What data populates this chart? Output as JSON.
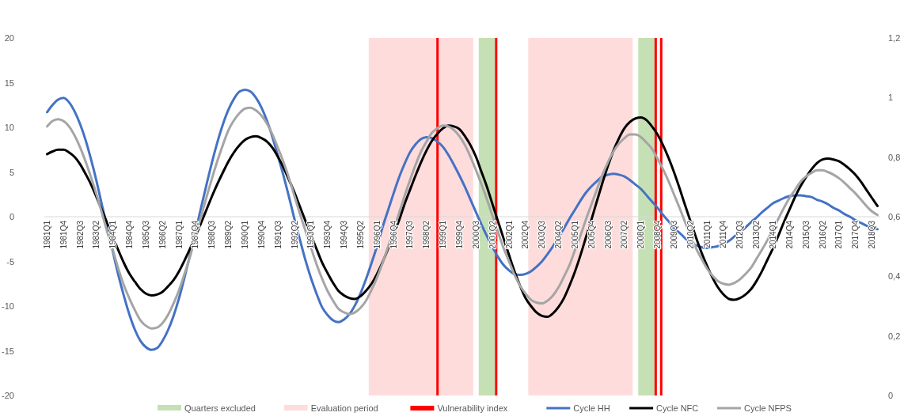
{
  "chart_data": {
    "type": "line",
    "legend": "bottom",
    "x": [
      "1981-01",
      "1981-04",
      "1981-07",
      "1981-10",
      "1982-01",
      "1982-04",
      "1982-07",
      "1982-10",
      "1983-01",
      "1983-04",
      "1983-07",
      "1983-10",
      "1984-01",
      "1984-04",
      "1984-07",
      "1984-10",
      "1985-01",
      "1985-04",
      "1985-07",
      "1985-10",
      "1986-01",
      "1986-04",
      "1986-07",
      "1986-10",
      "1987-01",
      "1987-04",
      "1987-07",
      "1987-10",
      "1988-01",
      "1988-04",
      "1988-07",
      "1988-10",
      "1989-01",
      "1989-04",
      "1989-07",
      "1989-10",
      "1990-01",
      "1990-04",
      "1990-07",
      "1990-10",
      "1991-01",
      "1991-04",
      "1991-07",
      "1991-10",
      "1992-01",
      "1992-04",
      "1992-07",
      "1992-10",
      "1993-01",
      "1993-04",
      "1993-07",
      "1993-10",
      "1994-01",
      "1994-04",
      "1994-07",
      "1994-10",
      "1995-01",
      "1995-04",
      "1995-07",
      "1995-10",
      "1996-01",
      "1996-04",
      "1996-07",
      "1996-10",
      "1997-01",
      "1997-04",
      "1997-07",
      "1997-10",
      "1998-01",
      "1998-04",
      "1998-07",
      "1998-10",
      "1999-01",
      "1999-04",
      "1999-07",
      "1999-10",
      "2000-01",
      "2000-04",
      "2000-07",
      "2000-10",
      "2001-01",
      "2001-04",
      "2001-07",
      "2001-10",
      "2002-01",
      "2002-04",
      "2002-07",
      "2002-10",
      "2003-01",
      "2003-04",
      "2003-07",
      "2003-10",
      "2004-01",
      "2004-04",
      "2004-07",
      "2004-10",
      "2005-01",
      "2005-04",
      "2005-07",
      "2005-10",
      "2006-01",
      "2006-04",
      "2006-07",
      "2006-10",
      "2007-01",
      "2007-04",
      "2007-07",
      "2007-10",
      "2008-01",
      "2008-04",
      "2008-07",
      "2008-10",
      "2009-01",
      "2009-04",
      "2009-07",
      "2009-10",
      "2010-01",
      "2010-04",
      "2010-07",
      "2010-10",
      "2011-01",
      "2011-04",
      "2011-07",
      "2011-10",
      "2012-01",
      "2012-04",
      "2012-07",
      "2012-10",
      "2013-01",
      "2013-04",
      "2013-07",
      "2013-10",
      "2014-01",
      "2014-04",
      "2014-07",
      "2014-10",
      "2015-01",
      "2015-04",
      "2015-07",
      "2015-10",
      "2016-01",
      "2016-04",
      "2016-07",
      "2016-10",
      "2017-01",
      "2017-04",
      "2017-07",
      "2017-10",
      "2018-01",
      "2018-04",
      "2018-07",
      "2018-10"
    ],
    "xlim": [
      "1980-11-16",
      "2018-11-16"
    ],
    "xticks": [
      {
        "value": "1981-01",
        "label": "1981Q1"
      },
      {
        "value": "1981-10",
        "label": "1981Q4"
      },
      {
        "value": "1982-07",
        "label": "1982Q3"
      },
      {
        "value": "1983-04",
        "label": "1983Q2"
      },
      {
        "value": "1984-01",
        "label": "1984Q1"
      },
      {
        "value": "1984-10",
        "label": "1984Q4"
      },
      {
        "value": "1985-07",
        "label": "1985Q3"
      },
      {
        "value": "1986-04",
        "label": "1986Q2"
      },
      {
        "value": "1987-01",
        "label": "1987Q1"
      },
      {
        "value": "1987-10",
        "label": "1987Q4"
      },
      {
        "value": "1988-07",
        "label": "1988Q3"
      },
      {
        "value": "1989-04",
        "label": "1989Q2"
      },
      {
        "value": "1990-01",
        "label": "1990Q1"
      },
      {
        "value": "1990-10",
        "label": "1990Q4"
      },
      {
        "value": "1991-07",
        "label": "1991Q3"
      },
      {
        "value": "1992-04",
        "label": "1992Q2"
      },
      {
        "value": "1993-01",
        "label": "1993Q1"
      },
      {
        "value": "1993-10",
        "label": "1993Q4"
      },
      {
        "value": "1994-07",
        "label": "1994Q3"
      },
      {
        "value": "1995-04",
        "label": "1995Q2"
      },
      {
        "value": "1996-01",
        "label": "1996Q1"
      },
      {
        "value": "1996-10",
        "label": "1996Q4"
      },
      {
        "value": "1997-07",
        "label": "1997Q3"
      },
      {
        "value": "1998-04",
        "label": "1998Q2"
      },
      {
        "value": "1999-01",
        "label": "1999Q1"
      },
      {
        "value": "1999-10",
        "label": "1999Q4"
      },
      {
        "value": "2000-07",
        "label": "2000Q3"
      },
      {
        "value": "2001-04",
        "label": "2001Q2"
      },
      {
        "value": "2002-01",
        "label": "2002Q1"
      },
      {
        "value": "2002-10",
        "label": "2002Q4"
      },
      {
        "value": "2003-07",
        "label": "2003Q3"
      },
      {
        "value": "2004-04",
        "label": "2004Q2"
      },
      {
        "value": "2005-01",
        "label": "2005Q1"
      },
      {
        "value": "2005-10",
        "label": "2005Q4"
      },
      {
        "value": "2006-07",
        "label": "2006Q3"
      },
      {
        "value": "2007-04",
        "label": "2007Q2"
      },
      {
        "value": "2008-01",
        "label": "2008Q1"
      },
      {
        "value": "2008-10",
        "label": "2008Q4"
      },
      {
        "value": "2009-07",
        "label": "2009Q3"
      },
      {
        "value": "2010-04",
        "label": "2010Q2"
      },
      {
        "value": "2011-01",
        "label": "2011Q1"
      },
      {
        "value": "2011-10",
        "label": "2011Q4"
      },
      {
        "value": "2012-07",
        "label": "2012Q3"
      },
      {
        "value": "2013-04",
        "label": "2013Q2"
      },
      {
        "value": "2014-01",
        "label": "2014Q1"
      },
      {
        "value": "2014-10",
        "label": "2014Q4"
      },
      {
        "value": "2015-07",
        "label": "2015Q3"
      },
      {
        "value": "2016-04",
        "label": "2016Q2"
      },
      {
        "value": "2017-01",
        "label": "2017Q1"
      },
      {
        "value": "2017-10",
        "label": "2017Q4"
      },
      {
        "value": "2018-07",
        "label": "2018Q3"
      }
    ],
    "ylim": [
      -20,
      20
    ],
    "yticks": [
      -20,
      -15,
      -10,
      -5,
      0,
      5,
      10,
      15,
      20
    ],
    "y2lim": [
      0,
      1.2
    ],
    "y2ticks": [
      0,
      {
        "value": 0.2,
        "label": "0,2"
      },
      {
        "value": 0.4,
        "label": "0,4"
      },
      {
        "value": 0.6,
        "label": "0,6"
      },
      {
        "value": 0.8,
        "label": "0,8"
      },
      1,
      {
        "value": 1.2,
        "label": "1,2"
      }
    ],
    "bands": [
      {
        "axis": "x",
        "from": "2000-08-16",
        "to": "2001-05-16",
        "label": "Quarters excluded",
        "color": "#c5e0b4"
      },
      {
        "axis": "x",
        "from": "2007-11-16",
        "to": "2008-08-16",
        "color": "#c5e0b4"
      },
      {
        "axis": "x",
        "from": "1995-08-16",
        "to": "2000-05-16",
        "label": "Evaluation period",
        "color": "#ffdcdc"
      },
      {
        "axis": "x",
        "from": "2002-11-16",
        "to": "2007-08-16",
        "color": "#ffdcdc"
      }
    ],
    "ref_lines": [
      {
        "axis": "x",
        "value": "1998-10",
        "label": "Vulnerability index",
        "color": "#ff0000"
      },
      {
        "axis": "x",
        "value": "2001-06",
        "color": "#ff0000"
      },
      {
        "axis": "x",
        "value": "2008-09",
        "color": "#ff0000"
      },
      {
        "axis": "x",
        "value": "2008-12",
        "color": "#ff0000"
      }
    ],
    "series": [
      {
        "name": "Cycle HH",
        "color": "#4472c4",
        "values": [
          11.7,
          12.5,
          13.1,
          13.3,
          12.8,
          11.8,
          10.4,
          8.6,
          6.4,
          4.0,
          1.3,
          -1.3,
          -4.0,
          -6.6,
          -8.9,
          -11.0,
          -12.7,
          -13.9,
          -14.6,
          -14.9,
          -14.7,
          -13.9,
          -12.7,
          -11.1,
          -9.1,
          -6.8,
          -4.3,
          -1.7,
          1.0,
          3.6,
          6.1,
          8.4,
          10.4,
          12.0,
          13.2,
          14.0,
          14.2,
          14.0,
          13.3,
          12.2,
          10.7,
          8.9,
          6.8,
          4.6,
          2.2,
          -0.3,
          -2.6,
          -4.9,
          -6.9,
          -8.6,
          -10.1,
          -11.0,
          -11.6,
          -11.8,
          -11.5,
          -10.9,
          -9.9,
          -8.6,
          -7.0,
          -5.2,
          -3.3,
          -1.2,
          0.7,
          2.6,
          4.4,
          5.9,
          7.2,
          8.1,
          8.7,
          8.9,
          8.8,
          8.4,
          7.8,
          6.9,
          5.8,
          4.6,
          3.3,
          1.9,
          0.5,
          -0.9,
          -2.2,
          -3.4,
          -4.5,
          -5.4,
          -6.0,
          -6.4,
          -6.5,
          -6.4,
          -6.1,
          -5.6,
          -5.0,
          -4.2,
          -3.3,
          -2.3,
          -1.3,
          -0.2,
          0.8,
          1.8,
          2.7,
          3.4,
          4.0,
          4.5,
          4.7,
          4.8,
          4.7,
          4.5,
          4.1,
          3.6,
          3.1,
          2.4,
          1.7,
          1.0,
          0.2,
          -0.5,
          -1.3,
          -1.8,
          -2.4,
          -2.9,
          -3.2,
          -3.4,
          -3.5,
          -3.4,
          -3.3,
          -3.0,
          -2.7,
          -2.2,
          -1.7,
          -1.2,
          -0.6,
          -0.1,
          0.5,
          1.0,
          1.5,
          1.8,
          2.1,
          2.3,
          2.4,
          2.4,
          2.3,
          2.2,
          1.9,
          1.7,
          1.4,
          1.0,
          0.7,
          0.3,
          0.0,
          -0.4,
          -0.7,
          -1.0,
          -1.2,
          -1.4
        ]
      },
      {
        "name": "Cycle NFC",
        "color": "#000000",
        "values": [
          7.0,
          7.3,
          7.5,
          7.5,
          7.2,
          6.7,
          5.9,
          4.8,
          3.6,
          2.2,
          0.7,
          -0.8,
          -2.3,
          -3.8,
          -5.2,
          -6.4,
          -7.3,
          -8.1,
          -8.6,
          -8.8,
          -8.7,
          -8.4,
          -7.8,
          -7.1,
          -6.1,
          -4.9,
          -3.6,
          -2.2,
          -0.7,
          0.8,
          2.3,
          3.7,
          5.0,
          6.2,
          7.2,
          8.0,
          8.6,
          8.9,
          9.0,
          8.8,
          8.4,
          7.7,
          6.7,
          5.5,
          4.1,
          2.7,
          1.1,
          -0.5,
          -2.1,
          -3.6,
          -5.1,
          -6.3,
          -7.4,
          -8.3,
          -8.8,
          -9.1,
          -9.2,
          -8.9,
          -8.3,
          -7.5,
          -6.4,
          -5.1,
          -3.6,
          -2.0,
          -0.4,
          1.4,
          3.0,
          4.6,
          6.1,
          7.4,
          8.5,
          9.3,
          9.9,
          10.2,
          10.1,
          9.8,
          9.0,
          8.0,
          6.7,
          5.0,
          3.3,
          1.4,
          -0.5,
          -2.4,
          -4.3,
          -6.1,
          -7.7,
          -9.1,
          -10.0,
          -10.7,
          -11.1,
          -11.2,
          -10.8,
          -10.1,
          -9.1,
          -7.7,
          -6.1,
          -4.3,
          -2.3,
          -0.3,
          1.8,
          3.8,
          5.7,
          7.4,
          8.8,
          9.9,
          10.6,
          11.0,
          11.1,
          10.8,
          10.1,
          9.2,
          8.0,
          6.6,
          5.0,
          3.2,
          1.3,
          -0.5,
          -2.3,
          -4.0,
          -5.5,
          -6.8,
          -7.9,
          -8.7,
          -9.2,
          -9.3,
          -9.1,
          -8.7,
          -8.1,
          -7.2,
          -6.1,
          -4.8,
          -3.5,
          -2.1,
          -0.6,
          0.8,
          2.2,
          3.4,
          4.4,
          5.3,
          6.0,
          6.4,
          6.5,
          6.4,
          6.2,
          5.8,
          5.3,
          4.7,
          3.9,
          3.0,
          2.1,
          1.2
        ]
      },
      {
        "name": "Cycle NFPS",
        "color": "#a5a5a5",
        "values": [
          10.1,
          10.7,
          10.9,
          10.7,
          10.1,
          9.1,
          7.8,
          6.2,
          4.4,
          2.5,
          0.4,
          -1.8,
          -3.8,
          -5.9,
          -7.7,
          -9.2,
          -10.5,
          -11.6,
          -12.2,
          -12.5,
          -12.4,
          -11.9,
          -11.0,
          -9.7,
          -8.2,
          -6.4,
          -4.5,
          -2.2,
          0.0,
          2.2,
          4.3,
          6.3,
          8.1,
          9.7,
          10.8,
          11.6,
          12.1,
          12.2,
          11.9,
          11.3,
          10.4,
          9.2,
          7.7,
          6.1,
          4.3,
          2.3,
          0.3,
          -1.6,
          -3.5,
          -5.3,
          -6.9,
          -8.3,
          -9.4,
          -10.3,
          -10.7,
          -10.9,
          -10.7,
          -10.2,
          -9.4,
          -8.2,
          -6.8,
          -5.2,
          -3.4,
          -1.5,
          0.4,
          2.3,
          4.1,
          5.8,
          7.3,
          8.4,
          9.4,
          9.9,
          10.2,
          10.1,
          9.7,
          9.0,
          8.0,
          6.7,
          5.2,
          3.6,
          1.9,
          0.1,
          -1.7,
          -3.5,
          -5.0,
          -6.5,
          -7.7,
          -8.6,
          -9.3,
          -9.6,
          -9.7,
          -9.4,
          -8.8,
          -7.9,
          -6.7,
          -5.4,
          -3.7,
          -2.1,
          -0.3,
          1.4,
          3.1,
          4.7,
          6.1,
          7.3,
          8.2,
          8.8,
          9.2,
          9.2,
          8.9,
          8.3,
          7.6,
          6.5,
          5.3,
          4.0,
          2.5,
          1.0,
          -0.6,
          -2.1,
          -3.5,
          -4.7,
          -5.8,
          -6.6,
          -7.2,
          -7.5,
          -7.6,
          -7.4,
          -7.0,
          -6.4,
          -5.7,
          -4.7,
          -3.7,
          -2.6,
          -1.4,
          -0.2,
          1.0,
          2.1,
          3.0,
          3.9,
          4.5,
          4.9,
          5.2,
          5.2,
          5.0,
          4.7,
          4.3,
          3.8,
          3.2,
          2.6,
          1.9,
          1.2,
          0.6,
          0.2
        ]
      }
    ]
  }
}
